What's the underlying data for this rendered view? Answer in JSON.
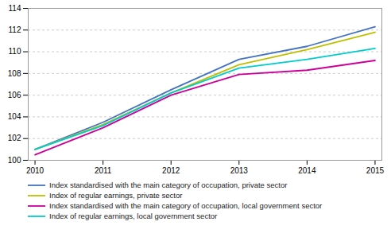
{
  "chart_data": {
    "type": "line",
    "x": [
      2010,
      2011,
      2012,
      2013,
      2014,
      2015
    ],
    "series": [
      {
        "name": "Index standardised with the main category of occupation, private sector",
        "color": "#4472C4",
        "values": [
          101.0,
          103.5,
          106.5,
          109.3,
          110.5,
          112.3
        ]
      },
      {
        "name": "Index of regular earnings, private sector",
        "color": "#BFBF00",
        "values": [
          101.0,
          103.3,
          106.2,
          108.8,
          110.2,
          111.8
        ]
      },
      {
        "name": "Index standardised with the main category of occupation, local government sector",
        "color": "#CC0099",
        "values": [
          100.5,
          103.0,
          106.0,
          107.9,
          108.3,
          109.2
        ]
      },
      {
        "name": "Index of regular earnings, local government sector",
        "color": "#00CCCC",
        "values": [
          101.0,
          103.2,
          106.2,
          108.5,
          109.3,
          110.3
        ]
      }
    ],
    "xlim": [
      2009.9,
      2015.1
    ],
    "xticks": [
      2010,
      2011,
      2012,
      2013,
      2014,
      2015
    ],
    "ylim": [
      100,
      114
    ],
    "yticks": [
      100,
      102,
      104,
      106,
      108,
      110,
      112,
      114
    ],
    "grid": true,
    "legend": "bottom"
  }
}
